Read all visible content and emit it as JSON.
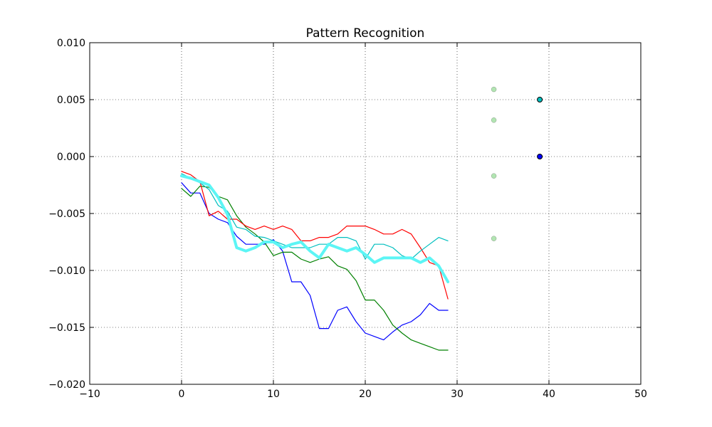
{
  "chart_data": {
    "type": "line",
    "title": "Pattern Recognition",
    "xlabel": "",
    "ylabel": "",
    "xlim": [
      -10,
      50
    ],
    "ylim": [
      -0.02,
      0.01
    ],
    "x_ticks": [
      -10,
      0,
      10,
      20,
      30,
      40,
      50
    ],
    "x_tick_labels": [
      "−10",
      "0",
      "10",
      "20",
      "30",
      "40",
      "50"
    ],
    "y_ticks": [
      -0.02,
      -0.015,
      -0.01,
      -0.005,
      0.0,
      0.005,
      0.01
    ],
    "y_tick_labels": [
      "−0.020",
      "−0.015",
      "−0.010",
      "−0.005",
      "0.000",
      "0.005",
      "0.010"
    ],
    "grid": true,
    "grid_style": "dotted",
    "x": [
      0,
      1,
      2,
      3,
      4,
      5,
      6,
      7,
      8,
      9,
      10,
      11,
      12,
      13,
      14,
      15,
      16,
      17,
      18,
      19,
      20,
      21,
      22,
      23,
      24,
      25,
      26,
      27,
      28,
      29
    ],
    "series": [
      {
        "color": "#0000ff",
        "width": 1.2,
        "values": [
          -0.0023,
          -0.0032,
          -0.0032,
          -0.005,
          -0.0055,
          -0.0058,
          -0.007,
          -0.0077,
          -0.0077,
          -0.0077,
          -0.0073,
          -0.0083,
          -0.011,
          -0.011,
          -0.0122,
          -0.0151,
          -0.0151,
          -0.0135,
          -0.0132,
          -0.0145,
          -0.0155,
          -0.0158,
          -0.0161,
          -0.0154,
          -0.0148,
          -0.0145,
          -0.0139,
          -0.0129,
          -0.0135,
          -0.0135
        ]
      },
      {
        "color": "#008000",
        "width": 1.2,
        "values": [
          -0.0028,
          -0.0035,
          -0.0026,
          -0.0027,
          -0.0035,
          -0.0038,
          -0.0052,
          -0.0062,
          -0.0068,
          -0.0075,
          -0.0087,
          -0.0084,
          -0.0084,
          -0.009,
          -0.0093,
          -0.009,
          -0.0088,
          -0.0096,
          -0.0099,
          -0.0109,
          -0.0126,
          -0.0126,
          -0.0135,
          -0.0148,
          -0.0155,
          -0.0161,
          -0.0164,
          -0.0167,
          -0.017,
          -0.017
        ]
      },
      {
        "color": "#ff0000",
        "width": 1.2,
        "values": [
          -0.0013,
          -0.0016,
          -0.0022,
          -0.0052,
          -0.0048,
          -0.0055,
          -0.0055,
          -0.0061,
          -0.0064,
          -0.0061,
          -0.0064,
          -0.0061,
          -0.0064,
          -0.0074,
          -0.0074,
          -0.0071,
          -0.0071,
          -0.0068,
          -0.0061,
          -0.0061,
          -0.0061,
          -0.0064,
          -0.0068,
          -0.0068,
          -0.0064,
          -0.0068,
          -0.008,
          -0.0093,
          -0.0096,
          -0.0125
        ]
      },
      {
        "color": "#00bfbf",
        "width": 1.2,
        "values": [
          -0.0015,
          -0.0019,
          -0.0023,
          -0.0029,
          -0.0043,
          -0.0048,
          -0.0062,
          -0.0064,
          -0.007,
          -0.0071,
          -0.0074,
          -0.0077,
          -0.008,
          -0.008,
          -0.008,
          -0.0077,
          -0.0077,
          -0.0071,
          -0.0071,
          -0.0074,
          -0.009,
          -0.0077,
          -0.0077,
          -0.008,
          -0.0087,
          -0.009,
          -0.0083,
          -0.0077,
          -0.0071,
          -0.0074
        ]
      },
      {
        "color": "#5cf5f5",
        "width": 4,
        "values": [
          -0.0017,
          -0.0019,
          -0.0022,
          -0.0025,
          -0.0036,
          -0.0051,
          -0.008,
          -0.0083,
          -0.008,
          -0.0075,
          -0.0075,
          -0.008,
          -0.0077,
          -0.0075,
          -0.0083,
          -0.0089,
          -0.0077,
          -0.008,
          -0.0083,
          -0.008,
          -0.0086,
          -0.0093,
          -0.0089,
          -0.0089,
          -0.0089,
          -0.0089,
          -0.0093,
          -0.0089,
          -0.0096,
          -0.011
        ]
      }
    ],
    "scatter_points": [
      {
        "x": 34,
        "y": 0.0059,
        "color": "#66cc66",
        "alpha": 0.5
      },
      {
        "x": 34,
        "y": 0.0032,
        "color": "#66cc66",
        "alpha": 0.5
      },
      {
        "x": 34,
        "y": -0.0017,
        "color": "#66cc66",
        "alpha": 0.5
      },
      {
        "x": 34,
        "y": -0.0072,
        "color": "#66cc66",
        "alpha": 0.5
      },
      {
        "x": 39,
        "y": 0.005,
        "color": "#00bfbf",
        "alpha": 1.0
      },
      {
        "x": 39,
        "y": 0.0,
        "color": "#0000ff",
        "alpha": 1.0
      }
    ]
  }
}
